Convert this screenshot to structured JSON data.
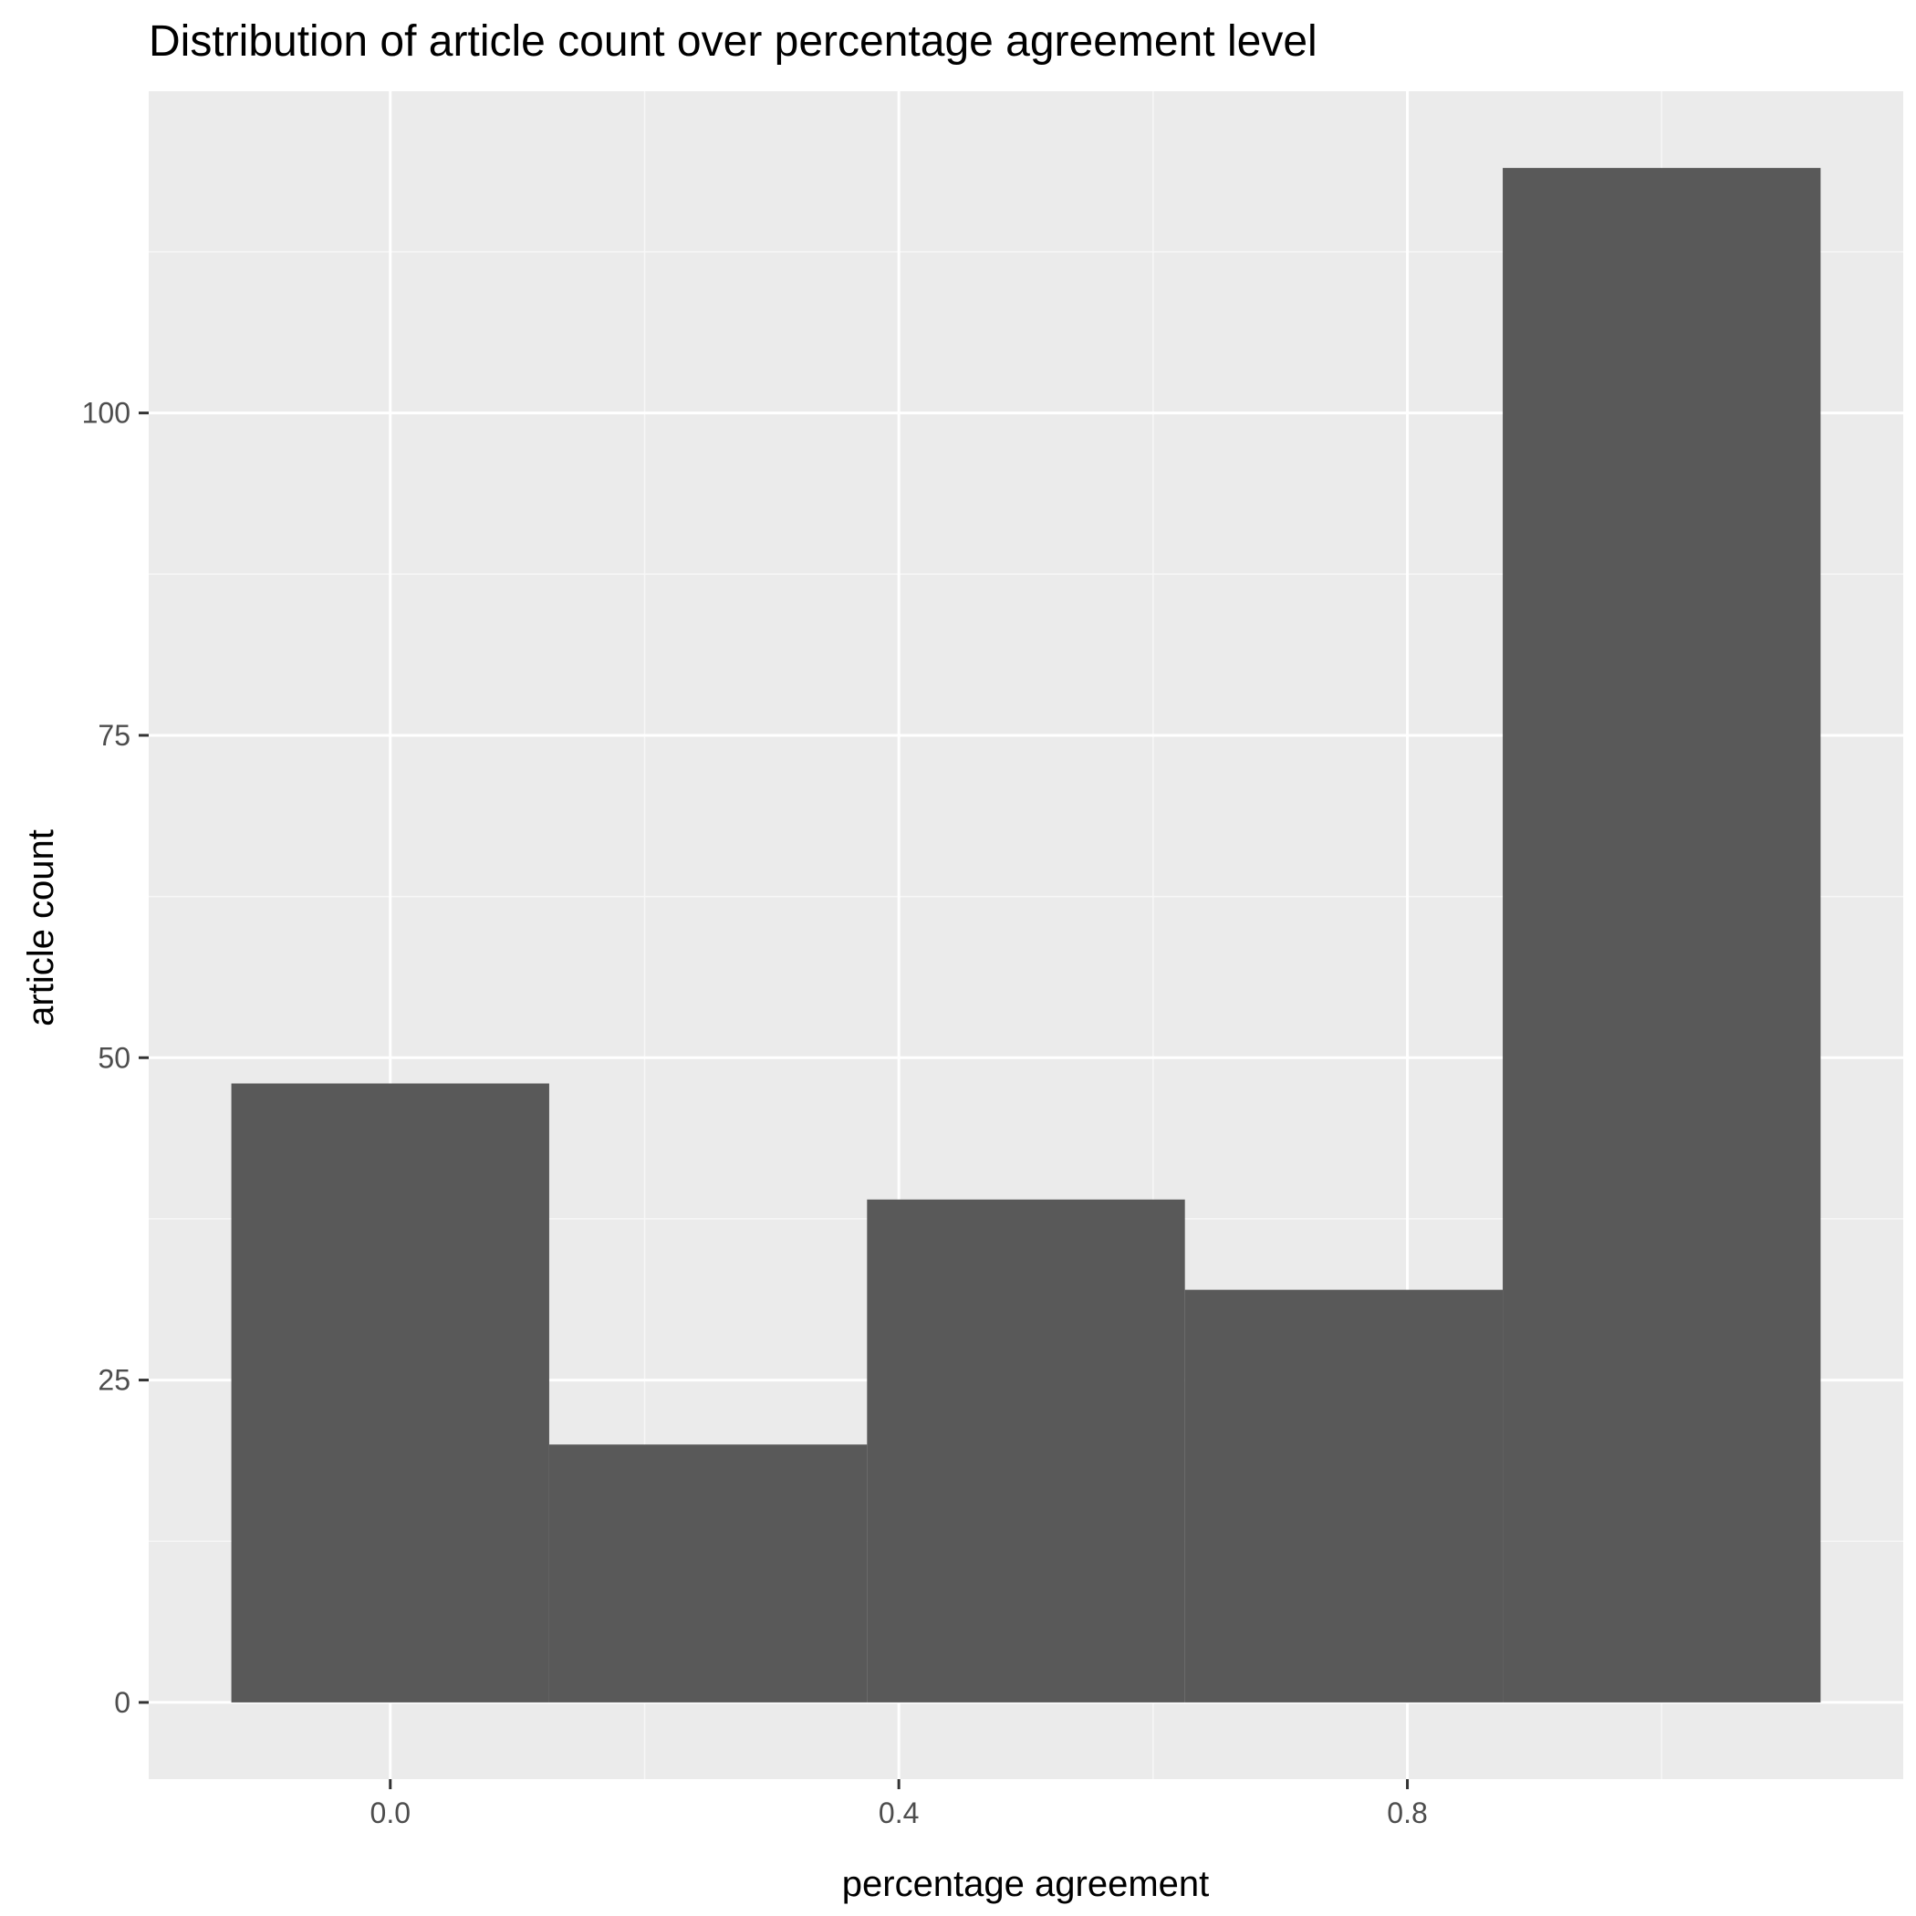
{
  "chart_data": {
    "type": "bar",
    "title": "Distribution of article count over percentage agreement level",
    "xlabel": "percentage agreement",
    "ylabel": "article count",
    "bins": [
      {
        "x_start": -0.125,
        "x_end": 0.125,
        "count": 48
      },
      {
        "x_start": 0.125,
        "x_end": 0.375,
        "count": 20
      },
      {
        "x_start": 0.375,
        "x_end": 0.625,
        "count": 39
      },
      {
        "x_start": 0.625,
        "x_end": 0.875,
        "count": 32
      },
      {
        "x_start": 0.875,
        "x_end": 1.125,
        "count": 119
      }
    ],
    "xlim": [
      -0.19,
      1.19
    ],
    "ylim": [
      -5.95,
      124.95
    ],
    "x_ticks": [
      0.0,
      0.4,
      0.8
    ],
    "x_tick_labels": [
      "0.0",
      "0.4",
      "0.8"
    ],
    "x_minor_gridlines": [
      0.2,
      0.6,
      1.0
    ],
    "y_ticks": [
      0,
      25,
      50,
      75,
      100
    ],
    "y_tick_labels": [
      "0",
      "25",
      "50",
      "75",
      "100"
    ],
    "y_minor_gridlines": [
      12.5,
      37.5,
      62.5,
      87.5,
      112.5
    ],
    "grid": true,
    "legend": "none",
    "colors": {
      "panel_background": "#ebebeb",
      "major_grid": "#ffffff",
      "minor_grid": "#f7f7f7",
      "bar_fill": "#595959",
      "tick": "#333333",
      "tick_label": "#4d4d4d"
    }
  }
}
